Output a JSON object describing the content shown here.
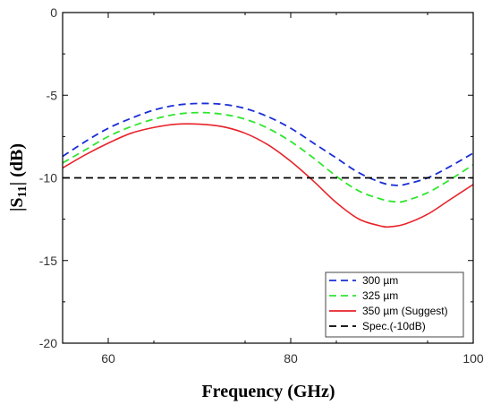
{
  "chart_data": {
    "type": "line",
    "xlabel": "Frequency (GHz)",
    "ylabel_main": "|S",
    "ylabel_sub": "11",
    "ylabel_tail": "| (dB)",
    "xlim": [
      55,
      100
    ],
    "ylim": [
      -20,
      0
    ],
    "x_ticks": [
      60,
      80,
      100
    ],
    "y_ticks": [
      0,
      -5,
      -10,
      -15,
      -20
    ],
    "grid": false,
    "legend_position": "bottom-right",
    "series": [
      {
        "name": "300 µm",
        "color": "#1a2fd6",
        "dash": "dashed",
        "x": [
          55,
          57.5,
          60,
          62.5,
          65,
          67.5,
          70,
          72.5,
          75,
          77.5,
          80,
          82.5,
          85,
          87.5,
          90,
          91.5,
          92.5,
          95,
          97.5,
          100
        ],
        "y": [
          -8.7,
          -7.8,
          -7.0,
          -6.4,
          -5.9,
          -5.6,
          -5.5,
          -5.55,
          -5.8,
          -6.3,
          -7.0,
          -7.9,
          -8.8,
          -9.7,
          -10.3,
          -10.45,
          -10.4,
          -10.0,
          -9.3,
          -8.5
        ]
      },
      {
        "name": "325 µm",
        "color": "#2ee62e",
        "dash": "dashed",
        "x": [
          55,
          57.5,
          60,
          62.5,
          65,
          67.5,
          70,
          72.5,
          75,
          77.5,
          80,
          82.5,
          85,
          87.5,
          90,
          91.5,
          92.5,
          95,
          97.5,
          100
        ],
        "y": [
          -9.1,
          -8.3,
          -7.5,
          -6.9,
          -6.45,
          -6.15,
          -6.05,
          -6.15,
          -6.45,
          -7.0,
          -7.8,
          -8.8,
          -9.9,
          -10.8,
          -11.3,
          -11.45,
          -11.4,
          -10.9,
          -10.1,
          -9.2
        ]
      },
      {
        "name": "350 µm (Suggest)",
        "color": "#e8232a",
        "dash": "solid",
        "x": [
          55,
          57.5,
          60,
          62.5,
          65,
          67.5,
          70,
          72.5,
          75,
          77.5,
          80,
          82.5,
          85,
          87.5,
          90,
          91,
          92.5,
          95,
          97.5,
          100
        ],
        "y": [
          -9.4,
          -8.6,
          -7.9,
          -7.3,
          -6.95,
          -6.75,
          -6.75,
          -6.9,
          -7.3,
          -8.0,
          -9.0,
          -10.2,
          -11.5,
          -12.5,
          -12.93,
          -12.95,
          -12.8,
          -12.2,
          -11.3,
          -10.4
        ]
      },
      {
        "name": "Spec.(-10dB)",
        "color": "#000000",
        "dash": "dashed",
        "x": [
          55,
          100
        ],
        "y": [
          -10,
          -10
        ]
      }
    ]
  }
}
